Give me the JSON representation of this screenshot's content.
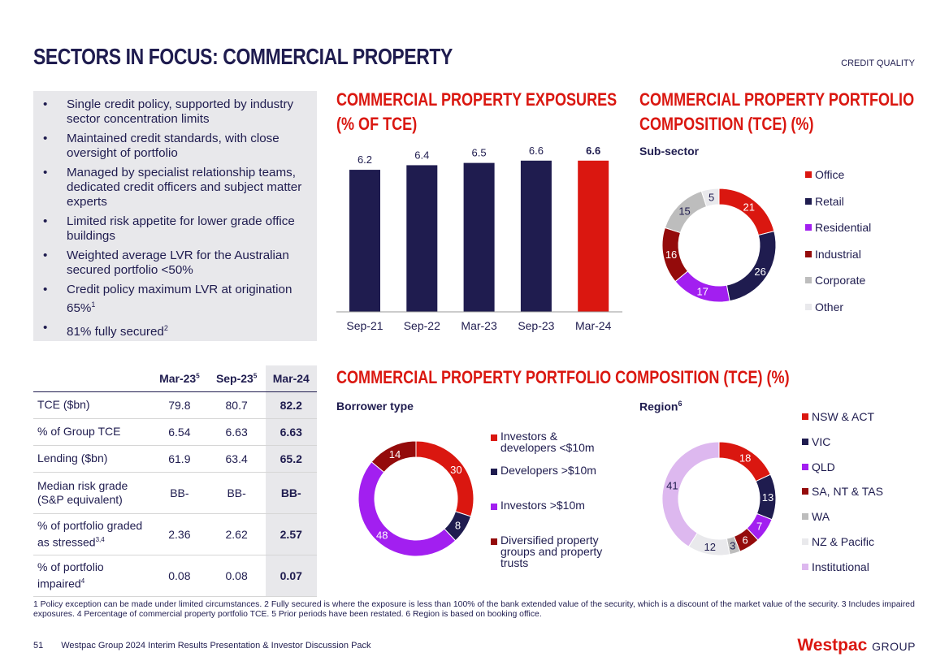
{
  "header": {
    "title": "SECTORS IN FOCUS: COMMERCIAL PROPERTY",
    "section_tag": "CREDIT QUALITY"
  },
  "bullets": [
    {
      "text": "Single credit policy, supported by industry sector concentration limits",
      "note": ""
    },
    {
      "text": "Maintained credit standards, with close oversight of portfolio",
      "note": ""
    },
    {
      "text": "Managed by specialist relationship teams, dedicated credit officers and subject matter experts",
      "note": ""
    },
    {
      "text": "Limited risk appetite for lower grade office buildings",
      "note": ""
    },
    {
      "text": "Weighted average LVR for the Australian secured portfolio <50%",
      "note": ""
    },
    {
      "text": "Credit policy maximum LVR at origination 65%",
      "note": "1"
    },
    {
      "text": "81% fully secured",
      "note": "2"
    }
  ],
  "table": {
    "headers": [
      {
        "label": "Mar-23",
        "note": "5"
      },
      {
        "label": "Sep-23",
        "note": "5"
      },
      {
        "label": "Mar-24",
        "note": ""
      }
    ],
    "rows": [
      {
        "label": "TCE ($bn)",
        "note": "",
        "values": [
          "79.8",
          "80.7",
          "82.2"
        ]
      },
      {
        "label": "% of Group TCE",
        "note": "",
        "values": [
          "6.54",
          "6.63",
          "6.63"
        ]
      },
      {
        "label": "Lending ($bn)",
        "note": "",
        "values": [
          "61.9",
          "63.4",
          "65.2"
        ]
      },
      {
        "label": "Median risk grade (S&P equivalent)",
        "note": "",
        "values": [
          "BB-",
          "BB-",
          "BB-"
        ]
      },
      {
        "label": "% of portfolio graded as stressed",
        "note": "3,4",
        "values": [
          "2.36",
          "2.62",
          "2.57"
        ]
      },
      {
        "label": "% of portfolio impaired",
        "note": "4",
        "values": [
          "0.08",
          "0.08",
          "0.07"
        ]
      }
    ]
  },
  "chart_exposures": {
    "heading_line1": "COMMERCIAL PROPERTY EXPOSURES",
    "heading_line2": "(% OF TCE)"
  },
  "chart_subsector": {
    "heading_line1": "COMMERCIAL PROPERTY PORTFOLIO",
    "heading_line2": "COMPOSITION (TCE) (%)",
    "subtitle": "Sub-sector"
  },
  "lower_heading": "COMMERCIAL PROPERTY PORTFOLIO COMPOSITION (TCE) (%)",
  "chart_borrower": {
    "subtitle": "Borrower type"
  },
  "chart_region": {
    "subtitle": "Region",
    "note": "6"
  },
  "colors": {
    "navy": "#1f1c4f",
    "red": "#da1710",
    "purple": "#a21ff0",
    "maroon": "#940b0b",
    "grey": "#bdbdbd",
    "light_grey": "#e9e9ec",
    "lavender": "#ddb8ef"
  },
  "chart_data": [
    {
      "type": "bar",
      "title": "COMMERCIAL PROPERTY EXPOSURES (% OF TCE)",
      "categories": [
        "Sep-21",
        "Sep-22",
        "Mar-23",
        "Sep-23",
        "Mar-24"
      ],
      "values": [
        6.2,
        6.4,
        6.5,
        6.6,
        6.6
      ],
      "highlight_index": 4,
      "ylim": [
        0,
        7.5
      ],
      "xlabel": "",
      "ylabel": ""
    },
    {
      "type": "pie",
      "title": "Sub-sector",
      "labels": [
        "Office",
        "Retail",
        "Residential",
        "Industrial",
        "Corporate",
        "Other"
      ],
      "values": [
        21,
        26,
        17,
        16,
        15,
        5
      ],
      "colors": [
        "#da1710",
        "#1f1c4f",
        "#a21ff0",
        "#940b0b",
        "#bdbdbd",
        "#e9e9ec"
      ],
      "label_colors": [
        "#ffffff",
        "#ffffff",
        "#ffffff",
        "#ffffff",
        "#1f1c4f",
        "#1f1c4f"
      ]
    },
    {
      "type": "pie",
      "title": "Borrower type",
      "labels": [
        "Investors & developers <$10m",
        "Developers >$10m",
        "Investors >$10m",
        "Diversified property groups and property trusts"
      ],
      "legend_lines": [
        [
          "Investors &",
          "developers <$10m"
        ],
        [
          "Developers >$10m"
        ],
        [
          "Investors >$10m"
        ],
        [
          "Diversified property",
          "groups and property",
          "trusts"
        ]
      ],
      "values": [
        30,
        8,
        48,
        14
      ],
      "colors": [
        "#da1710",
        "#1f1c4f",
        "#a21ff0",
        "#940b0b"
      ],
      "label_colors": [
        "#ffffff",
        "#ffffff",
        "#ffffff",
        "#ffffff"
      ]
    },
    {
      "type": "pie",
      "title": "Region",
      "labels": [
        "NSW & ACT",
        "VIC",
        "QLD",
        "SA, NT & TAS",
        "WA",
        "NZ & Pacific",
        "Institutional"
      ],
      "values": [
        18,
        13,
        7,
        6,
        3,
        12,
        41
      ],
      "colors": [
        "#da1710",
        "#1f1c4f",
        "#a21ff0",
        "#940b0b",
        "#bdbdbd",
        "#e9e9ec",
        "#ddb8ef"
      ],
      "label_colors": [
        "#ffffff",
        "#ffffff",
        "#ffffff",
        "#ffffff",
        "#1f1c4f",
        "#1f1c4f",
        "#1f1c4f"
      ]
    }
  ],
  "footnote": "1 Policy exception can be made under limited circumstances. 2 Fully secured is where the exposure is less than 100% of the bank extended value of the security, which is a discount of the market value of the security. 3 Includes impaired exposures. 4 Percentage of commercial property portfolio TCE. 5 Prior periods have been restated. 6 Region is based on booking office.",
  "footer": {
    "page_number": "51",
    "doc_title": "Westpac Group 2024 Interim Results Presentation & Investor Discussion Pack",
    "logo_text": "Westpac",
    "logo_group": "GROUP"
  }
}
